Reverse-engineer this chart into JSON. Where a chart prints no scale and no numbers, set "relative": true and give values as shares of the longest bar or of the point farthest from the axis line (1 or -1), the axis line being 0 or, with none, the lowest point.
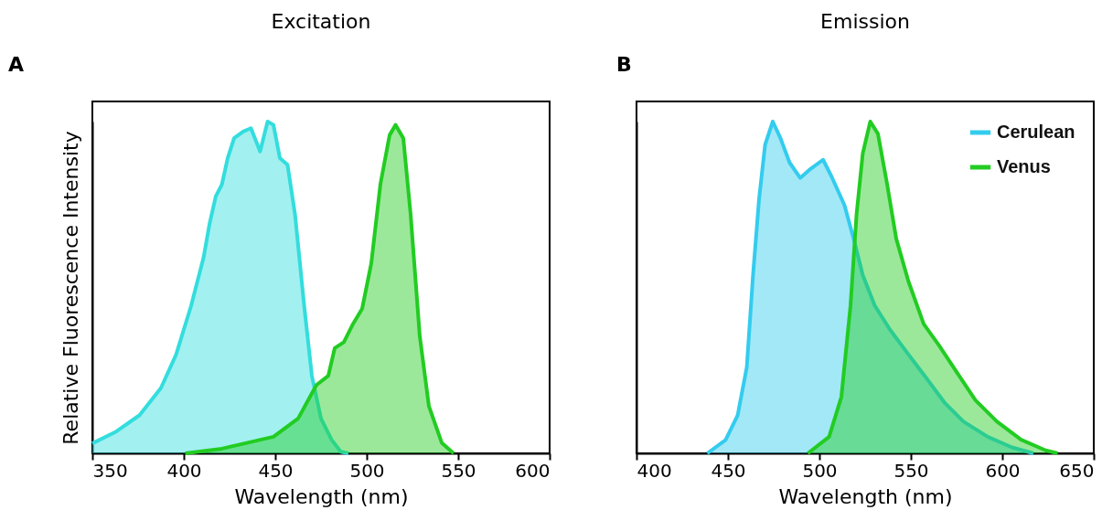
{
  "chart_data": [
    {
      "type": "area",
      "title": "Excitation",
      "xlabel": "Wavelength (nm)",
      "ylabel": "Relative Fluorescence Intensity",
      "annotations": [
        "A"
      ],
      "relative": true,
      "xlim": [
        350,
        600
      ],
      "xticks": [
        350,
        400,
        450,
        500,
        550,
        600
      ],
      "legend": false,
      "series": [
        {
          "color": "#33dddd",
          "x": [
            350,
            362.5,
            375.8,
            387.5,
            395.8,
            404,
            410.8,
            414,
            417.5,
            420.8,
            424,
            427.5,
            432.5,
            436.7,
            441.7,
            445.8,
            449,
            452.5,
            456.7,
            460.8,
            465.8,
            470,
            475,
            480.8,
            485.8,
            490
          ],
          "values": [
            0.03,
            0.064,
            0.115,
            0.197,
            0.298,
            0.445,
            0.59,
            0.69,
            0.775,
            0.81,
            0.89,
            0.95,
            0.97,
            0.98,
            0.91,
            1,
            0.99,
            0.89,
            0.87,
            0.72,
            0.445,
            0.234,
            0.105,
            0.041,
            0.005,
            0
          ]
        },
        {
          "color": "#22cc22",
          "x": [
            400.8,
            420.8,
            449,
            462.5,
            472.5,
            479,
            482.5,
            487.5,
            492.5,
            497.5,
            502.5,
            507.5,
            512.5,
            515.8,
            520,
            524,
            529,
            534,
            541,
            547.5
          ],
          "values": [
            0,
            0.014,
            0.05,
            0.105,
            0.206,
            0.234,
            0.317,
            0.335,
            0.39,
            0.436,
            0.573,
            0.812,
            0.959,
            0.99,
            0.95,
            0.72,
            0.353,
            0.142,
            0.032,
            0
          ]
        }
      ]
    },
    {
      "type": "area",
      "title": "Emission",
      "xlabel": "Wavelength (nm)",
      "annotations": [
        "B"
      ],
      "relative": true,
      "xlim": [
        400,
        650
      ],
      "xticks": [
        400,
        450,
        500,
        550,
        600,
        650
      ],
      "legend": "top right",
      "series": [
        {
          "name": "Cerulean",
          "color": "#33ccee",
          "x": [
            438.7,
            448.7,
            455.3,
            460.3,
            463.7,
            467,
            470.3,
            474.5,
            478.7,
            483.7,
            489.5,
            495.3,
            502,
            507,
            513.7,
            518.7,
            523.7,
            530.3,
            538.7,
            548.7,
            558.7,
            568.7,
            578.7,
            592,
            605.3,
            617
          ],
          "values": [
            0,
            0.04,
            0.115,
            0.26,
            0.537,
            0.766,
            0.93,
            1,
            0.95,
            0.876,
            0.83,
            0.858,
            0.885,
            0.83,
            0.748,
            0.647,
            0.537,
            0.445,
            0.372,
            0.298,
            0.225,
            0.151,
            0.096,
            0.05,
            0.018,
            0
          ]
        },
        {
          "name": "Venus",
          "color": "#22cc22",
          "x": [
            493.7,
            505.3,
            512,
            517,
            520.3,
            523.7,
            527.8,
            532,
            537,
            542,
            548.7,
            557,
            565.3,
            575.3,
            585.3,
            597,
            610.3,
            623.7,
            630.3
          ],
          "values": [
            0,
            0.05,
            0.17,
            0.445,
            0.72,
            0.904,
            1,
            0.963,
            0.812,
            0.647,
            0.518,
            0.39,
            0.326,
            0.243,
            0.16,
            0.096,
            0.041,
            0.009,
            0
          ]
        }
      ]
    }
  ]
}
